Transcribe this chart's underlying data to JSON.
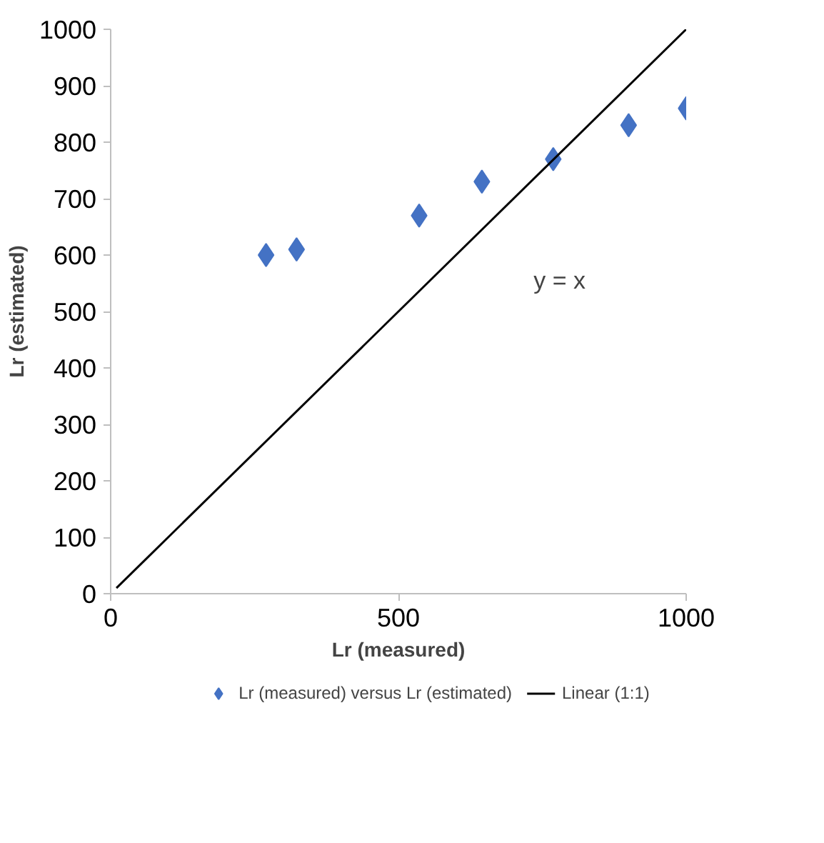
{
  "chart_data": {
    "type": "scatter",
    "xlabel": "Lr (measured)",
    "ylabel": "Lr (estimated)",
    "xlim": [
      0,
      1000
    ],
    "ylim": [
      0,
      1000
    ],
    "xticks": [
      0,
      500,
      1000
    ],
    "yticks": [
      0,
      100,
      200,
      300,
      400,
      500,
      600,
      700,
      800,
      900,
      1000
    ],
    "grid": false,
    "legend": "bottom",
    "series": [
      {
        "name": "Lr (measured) versus Lr (estimated)",
        "marker": "diamond",
        "color": "#4472c4",
        "x": [
          270,
          323,
          536,
          645,
          769,
          900,
          1000
        ],
        "values": [
          600,
          610,
          670,
          730,
          770,
          830,
          860
        ]
      },
      {
        "name": "Linear (1:1)",
        "type": "line",
        "marker": "none",
        "color": "#000000",
        "x": [
          10,
          1000
        ],
        "values": [
          10,
          1000
        ]
      }
    ],
    "annotations": [
      "y = x"
    ]
  }
}
